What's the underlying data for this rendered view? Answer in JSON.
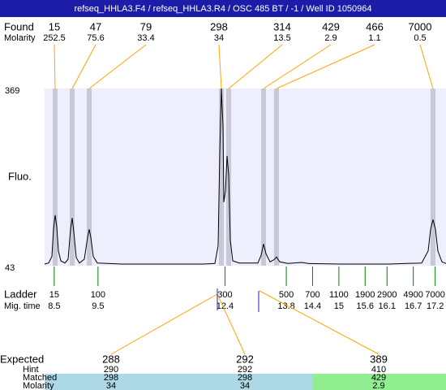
{
  "title": "refseq_HHLA3.F4 / refseq_HHLA3.R4 / OSC 485 BT  / -1 / Well ID 1050964",
  "chart_data": {
    "type": "line",
    "ylabel": "Fluo.",
    "color": "#000000",
    "band_color": "#c8c8d8",
    "plot_bg": "#eeeefc",
    "ylim": [
      43,
      369
    ],
    "yticks": [
      43,
      369
    ],
    "xlim": [
      8.28,
      17.447
    ],
    "x": [
      8.28,
      8.373,
      8.447,
      8.484,
      8.521,
      8.558,
      8.595,
      8.65,
      8.743,
      8.817,
      8.873,
      8.91,
      8.947,
      9.002,
      9.076,
      9.187,
      9.261,
      9.299,
      9.336,
      9.391,
      9.484,
      10.039,
      10.965,
      11.891,
      12.169,
      12.243,
      12.28,
      12.317,
      12.354,
      12.372,
      12.409,
      12.446,
      12.484,
      12.521,
      12.576,
      12.724,
      13.15,
      13.224,
      13.28,
      13.336,
      13.428,
      13.521,
      13.576,
      13.65,
      13.836,
      14.15,
      14.299,
      15.039,
      16.15,
      16.891,
      17.039,
      17.095,
      17.15,
      17.206,
      17.261,
      17.354,
      17.447
    ],
    "values": [
      46,
      48,
      60,
      110,
      136,
      115,
      70,
      52,
      48,
      55,
      110,
      131,
      105,
      58,
      48,
      55,
      95,
      110,
      95,
      60,
      48,
      46,
      46,
      46,
      47,
      80,
      250,
      369,
      300,
      160,
      180,
      245,
      210,
      90,
      52,
      48,
      48,
      62,
      83,
      65,
      50,
      54,
      59,
      50,
      47,
      49,
      47,
      46,
      46,
      48,
      70,
      110,
      128,
      110,
      70,
      50,
      47
    ],
    "found": {
      "label": "Found",
      "molarity_label": "Molarity",
      "sizes": [
        15,
        47,
        79,
        298,
        314,
        429,
        466,
        7000
      ],
      "molarity": [
        252.5,
        75.6,
        33.4,
        34,
        13.5,
        2.9,
        1.1,
        0.5
      ],
      "x": [
        8.521,
        8.91,
        9.299,
        12.317,
        12.484,
        13.28,
        13.576,
        17.15
      ]
    },
    "ladder": {
      "label": "Ladder",
      "time_label": "Mig. time",
      "sizes": [
        15,
        100,
        300,
        500,
        700,
        1100,
        1900,
        2900,
        4900,
        7000
      ],
      "times": [
        8.5,
        9.5,
        12.4,
        13.8,
        14.4,
        15,
        15.6,
        16.1,
        16.7,
        17.2
      ]
    }
  },
  "expected": {
    "labels": [
      "Expected",
      "Hint",
      "Matched",
      "Molarity"
    ],
    "columns": [
      {
        "expected": 288,
        "hint": 290,
        "matched": 298,
        "molarity": 34,
        "color": "#add8e6"
      },
      {
        "expected": 292,
        "hint": 292,
        "matched": 298,
        "molarity": 34,
        "color": "#add8e6"
      },
      {
        "expected": 389,
        "hint": 410,
        "matched": 429,
        "molarity": 2.9,
        "color": "#90ee90"
      }
    ]
  }
}
